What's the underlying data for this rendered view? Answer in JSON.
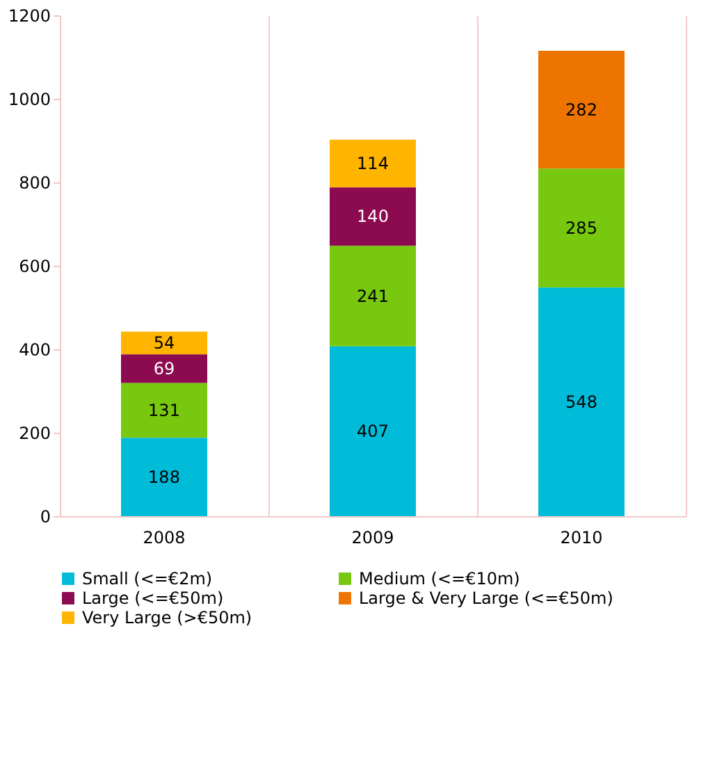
{
  "chart_data": {
    "type": "bar",
    "stacked": true,
    "categories": [
      "2008",
      "2009",
      "2010"
    ],
    "series": [
      {
        "name": "Small (<=€2m)",
        "color": "#00bcd8",
        "values": [
          188,
          407,
          548
        ]
      },
      {
        "name": "Medium (<=€10m)",
        "color": "#77c80e",
        "values": [
          131,
          241,
          285
        ]
      },
      {
        "name": "Large (<=€50m)",
        "color": "#8c0a4f",
        "values": [
          69,
          140,
          null
        ]
      },
      {
        "name": "Large & Very Large (<=€50m)",
        "color": "#ee7400",
        "values": [
          null,
          null,
          282
        ]
      },
      {
        "name": "Very Large (>€50m)",
        "color": "#ffb400",
        "values": [
          54,
          114,
          null
        ]
      }
    ],
    "ylim": [
      0,
      1200
    ],
    "yticks": [
      0,
      200,
      400,
      600,
      800,
      1000,
      1200
    ],
    "grid": "x",
    "legend": "bottom",
    "data_labels": true
  }
}
